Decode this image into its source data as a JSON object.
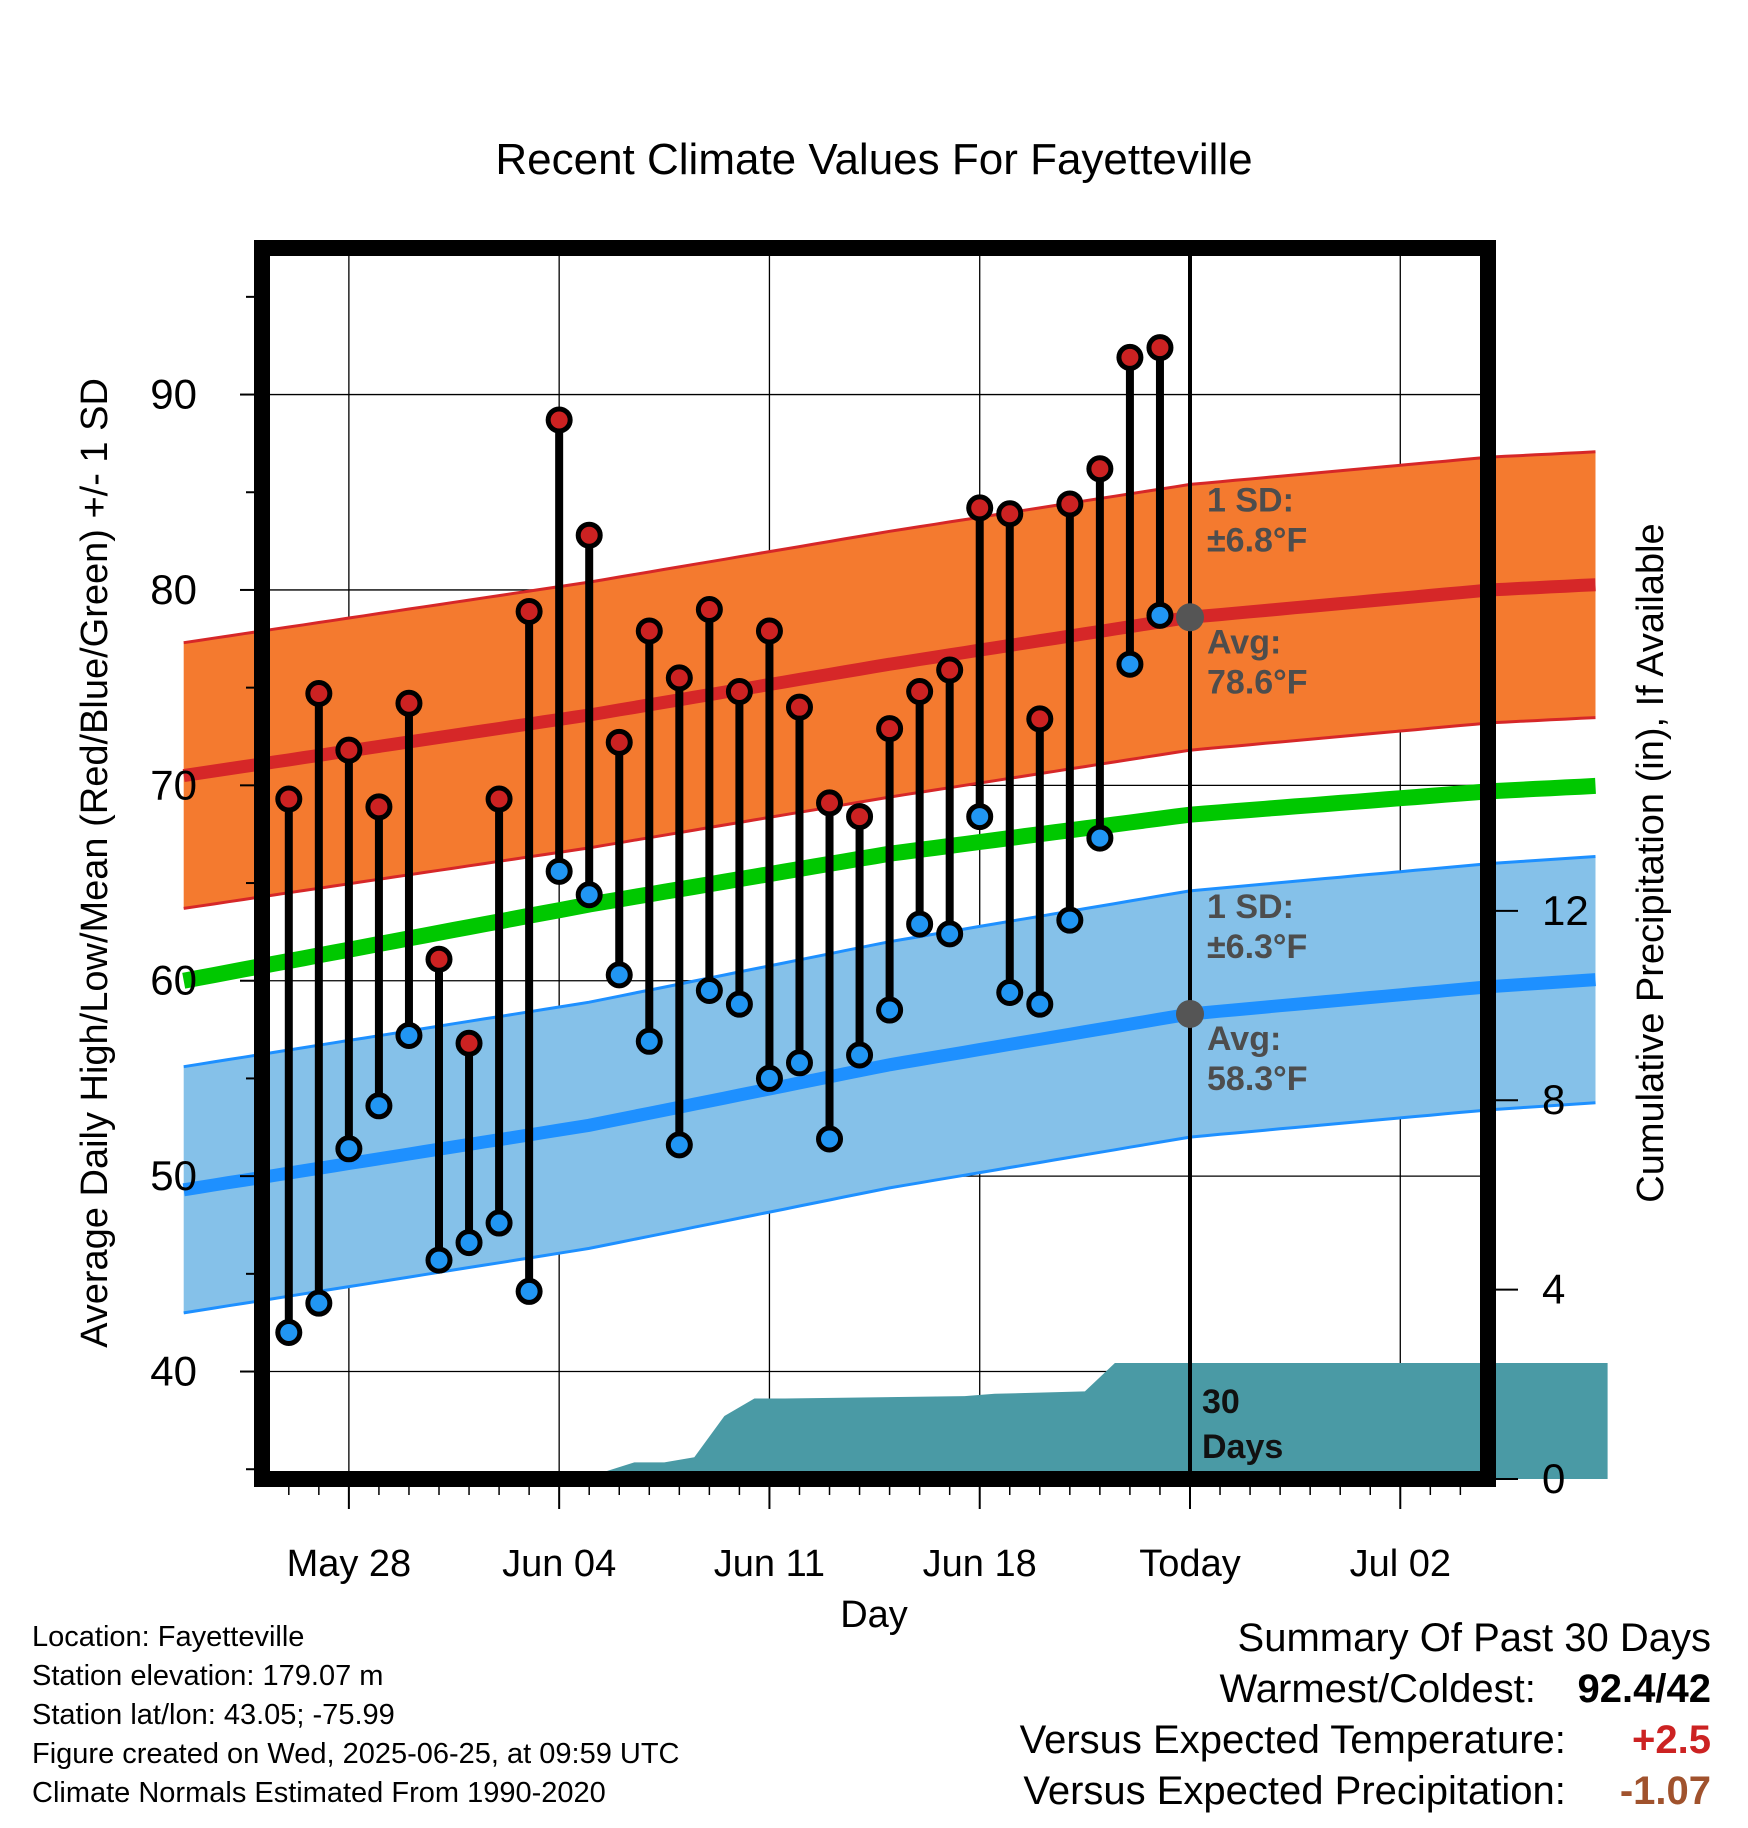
{
  "chart_data": {
    "type": "line",
    "title": "Recent Climate Values For Fayetteville",
    "xlabel": "Day",
    "ylabel": "Average Daily High/Low/Mean (Red/Blue/Green) +/- 1 SD",
    "y2label": "Cumulative Precipitation (in), If Available",
    "xticks": [
      "May 28",
      "Jun 04",
      "Jun 11",
      "Jun 18",
      "Today",
      "Jul 02"
    ],
    "ylim": [
      34.5,
      97.5
    ],
    "yticks": [
      40,
      50,
      60,
      70,
      80,
      90
    ],
    "y2lim": [
      0,
      26
    ],
    "y2ticks": [
      0,
      4,
      8,
      12
    ],
    "grid": true,
    "days_offset_from_today": [
      -30,
      -29,
      -28,
      -27,
      -26,
      -25,
      -24,
      -23,
      -22,
      -21,
      -20,
      -19,
      -18,
      -17,
      -16,
      -15,
      -14,
      -13,
      -12,
      -11,
      -10,
      -9,
      -8,
      -7,
      -6,
      -5,
      -4,
      -3,
      -2,
      -1
    ],
    "series": [
      {
        "name": "Daily High",
        "color": "#cc2222",
        "values": [
          69.3,
          74.7,
          71.8,
          68.9,
          74.2,
          61.1,
          56.8,
          69.3,
          78.9,
          88.7,
          82.8,
          72.2,
          77.9,
          75.5,
          79.0,
          74.8,
          77.9,
          74.0,
          69.1,
          68.4,
          72.9,
          74.8,
          75.9,
          84.2,
          83.9,
          73.4,
          84.4,
          86.2,
          91.9,
          92.4
        ]
      },
      {
        "name": "Daily Low",
        "color": "#2196f3",
        "values": [
          42.0,
          43.5,
          51.4,
          53.6,
          57.2,
          45.7,
          46.6,
          47.6,
          44.1,
          65.6,
          64.4,
          60.3,
          56.9,
          51.6,
          59.5,
          58.8,
          55.0,
          55.8,
          51.9,
          56.2,
          58.5,
          62.9,
          62.4,
          68.4,
          59.4,
          58.8,
          63.1,
          67.3,
          76.2,
          78.7
        ]
      }
    ],
    "normals": {
      "days_offset_from_today": [
        -33.5,
        -20,
        -10,
        0,
        10,
        13.9
      ],
      "high_mean": [
        70.5,
        73.6,
        76.2,
        78.6,
        80.0,
        80.3
      ],
      "high_sd": 6.8,
      "mean": [
        60.0,
        63.9,
        66.5,
        68.5,
        69.7,
        70.0
      ],
      "low_mean": [
        49.3,
        52.6,
        55.7,
        58.3,
        59.7,
        60.1
      ],
      "low_sd": 6.3
    },
    "precipitation": {
      "days_offset_from_today": [
        -33.5,
        -25.5,
        -24.5,
        -19.5,
        -18.5,
        -17.5,
        -16.5,
        -15.5,
        -14.5,
        -13.5,
        -7.5,
        -6.5,
        -3.5,
        -2.5,
        -1.5,
        0,
        13.9
      ],
      "values": [
        0,
        0,
        0.15,
        0.15,
        0.35,
        0.35,
        0.46,
        1.33,
        1.7,
        1.7,
        1.75,
        1.8,
        1.85,
        2.45,
        2.45,
        2.45,
        2.45
      ]
    },
    "annotations": {
      "high_sd": [
        "1 SD:",
        "±6.8°F"
      ],
      "high_avg": [
        "Avg:",
        "78.6°F"
      ],
      "low_sd": [
        "1 SD:",
        "±6.3°F"
      ],
      "low_avg": [
        "Avg:",
        "58.3°F"
      ],
      "today_marker": [
        "30",
        "Days"
      ]
    },
    "colors": {
      "high_band": "#f47a2f",
      "high_line": "#d62728",
      "mean_line": "#00c800",
      "low_band": "#85c1e9",
      "low_line": "#1e90ff",
      "precip": "#4a9aa5",
      "annotation": "#4d4d4d"
    }
  },
  "footer": [
    "Location: Fayetteville",
    "Station elevation: 179.07 m",
    "Station lat/lon: 43.05; -75.99",
    "Figure created on Wed, 2025-06-25, at 09:59 UTC",
    "Climate Normals Estimated From 1990-2020"
  ],
  "summary": {
    "title": "Summary Of Past 30 Days",
    "warm_label": "Warmest/Coldest:",
    "warm_value": "92.4/42",
    "temp_label": "Versus Expected Temperature:",
    "temp_value": "+2.5",
    "temp_color": "#cc2222",
    "precip_label": "Versus Expected Precipitation:",
    "precip_value": "-1.07",
    "precip_color": "#a0522d"
  }
}
